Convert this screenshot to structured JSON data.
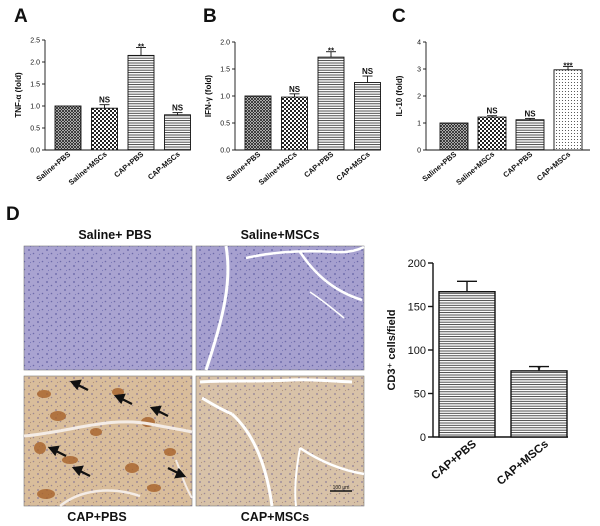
{
  "chart_data": [
    {
      "panel": "A",
      "type": "bar",
      "ylabel": "TNF-α (fold)",
      "categories": [
        "Saline+PBS",
        "Saline+MSCs",
        "CAP+PBS",
        "CAP-MSCs"
      ],
      "values": [
        1.0,
        0.95,
        2.15,
        0.8
      ],
      "errors": [
        0.0,
        0.08,
        0.18,
        0.05
      ],
      "annotations": [
        "",
        "NS",
        "**",
        "NS"
      ],
      "ylim": [
        0,
        2.5
      ],
      "yticks": [
        "0.0",
        "0.5",
        "1.0",
        "1.5",
        "2.0",
        "2.5"
      ],
      "patterns": [
        "crosshatch",
        "checker",
        "hlines",
        "hlines"
      ]
    },
    {
      "panel": "B",
      "type": "bar",
      "ylabel": "IFN-γ (fold)",
      "categories": [
        "Saline+PBS",
        "Saline+MSCs",
        "CAP+PBS",
        "CAP+MSCs"
      ],
      "values": [
        1.0,
        0.98,
        1.72,
        1.25
      ],
      "errors": [
        0.0,
        0.06,
        0.1,
        0.12
      ],
      "annotations": [
        "",
        "NS",
        "**",
        "NS"
      ],
      "ylim": [
        0,
        2.0
      ],
      "yticks": [
        "0.0",
        "0.5",
        "1.0",
        "1.5",
        "2.0"
      ],
      "patterns": [
        "crosshatch",
        "checker",
        "hlines",
        "hlines"
      ]
    },
    {
      "panel": "C",
      "type": "bar",
      "ylabel": "IL-10 (fold)",
      "categories": [
        "Saline+PBS",
        "Saline+MSCs",
        "CAP+PBS",
        "CAP+MSCs"
      ],
      "values": [
        1.0,
        1.22,
        1.12,
        2.97
      ],
      "errors": [
        0.0,
        0.05,
        0.05,
        0.12
      ],
      "annotations": [
        "",
        "NS",
        "NS",
        "***"
      ],
      "ylim": [
        0,
        4
      ],
      "yticks": [
        "0",
        "1",
        "2",
        "3",
        "4"
      ],
      "patterns": [
        "crosshatch",
        "checker",
        "hlines",
        "dots"
      ]
    },
    {
      "panel": "D",
      "type": "bar",
      "ylabel": "CD3⁺ cells/field",
      "categories": [
        "CAP+PBS",
        "CAP+MSCs"
      ],
      "values": [
        167,
        76
      ],
      "errors": [
        12,
        5
      ],
      "annotations": [
        "",
        "*"
      ],
      "ylim": [
        0,
        200
      ],
      "yticks": [
        "0",
        "50",
        "100",
        "150",
        "200"
      ],
      "patterns": [
        "hlines",
        "hlines"
      ]
    }
  ],
  "micrographs": [
    {
      "label": "Saline+ PBS",
      "stain": "blue"
    },
    {
      "label": "Saline+MSCs",
      "stain": "blue"
    },
    {
      "label": "CAP+PBS",
      "stain": "brown"
    },
    {
      "label": "CAP+MSCs",
      "stain": "brown"
    }
  ],
  "scale_bar": "100 μm",
  "colors": {
    "ink": "#111111",
    "blue_tissue": "#a7a2d0",
    "brown_tissue": "#d7b995",
    "stain": "#a8622a"
  }
}
